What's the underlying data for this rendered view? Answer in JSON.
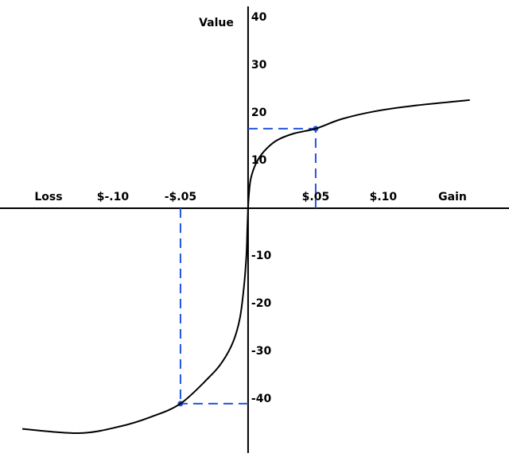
{
  "chart_data": {
    "type": "line",
    "y_label": "Value",
    "x_end_labels": [
      "Loss",
      "Gain"
    ],
    "x": [
      -0.167,
      -0.125,
      -0.095,
      -0.072,
      -0.05,
      -0.029,
      -0.019,
      -0.011,
      -0.006,
      -0.003,
      -0.0012,
      -0.0006,
      0,
      0.0006,
      0.002,
      0.006,
      0.012,
      0.021,
      0.034,
      0.05,
      0.069,
      0.093,
      0.122,
      0.164
    ],
    "series": [
      {
        "color": "#000000",
        "values": [
          -46.3,
          -47.2,
          -45.8,
          -43.8,
          -41,
          -35.5,
          -32.2,
          -28,
          -23,
          -16.3,
          -9.7,
          -4.7,
          0,
          2.8,
          6.2,
          9.5,
          12,
          14.2,
          15.7,
          16.7,
          18.7,
          20.3,
          21.5,
          22.7
        ]
      }
    ],
    "guides": {
      "color": "#2255dd",
      "points": [
        {
          "x": 0.05,
          "y": 16.7
        },
        {
          "x": -0.05,
          "y": -41
        }
      ]
    },
    "xlim": [
      -0.1835,
      0.193
    ],
    "ylim": [
      -52.2,
      43.7
    ],
    "xticks": [
      {
        "value": -0.1,
        "label": "$-.10"
      },
      {
        "value": -0.05,
        "label": "-$.05"
      },
      {
        "value": 0.05,
        "label": "$.05"
      },
      {
        "value": 0.1,
        "label": "$.10"
      }
    ],
    "yticks": [
      40,
      30,
      20,
      10,
      -10,
      -20,
      -30,
      -40
    ],
    "grid": false
  }
}
